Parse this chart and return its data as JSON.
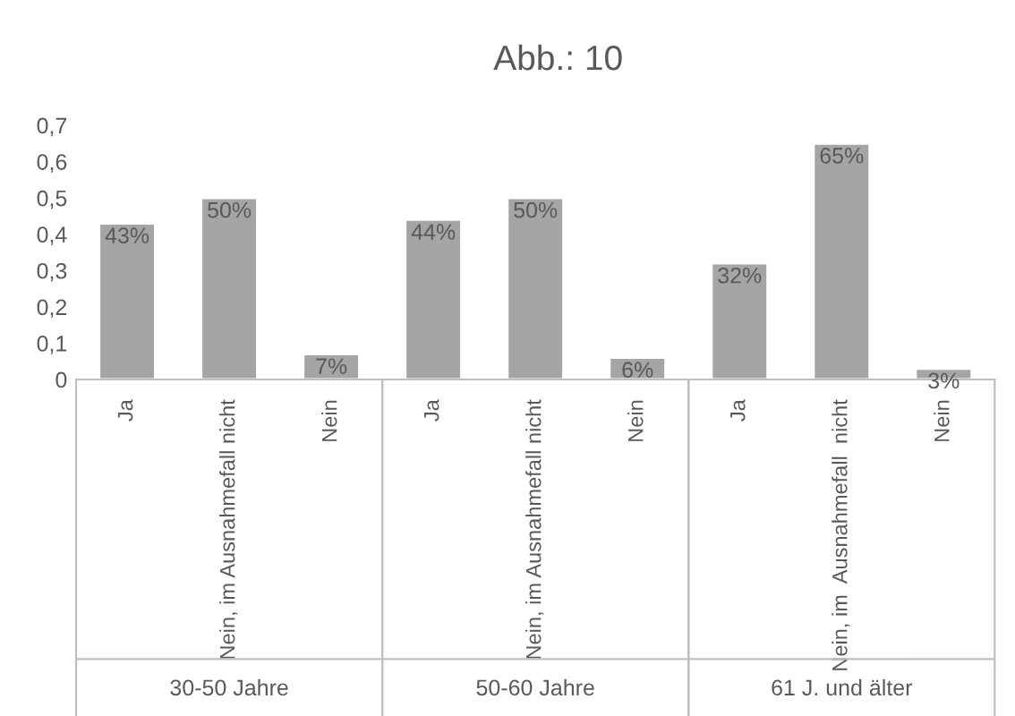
{
  "chart_data": {
    "type": "bar",
    "title": "Abb.: 10",
    "categories": [
      "Ja",
      "Nein, im Ausnahmefall nicht",
      "Nein",
      "Ja",
      "Nein, im Ausnahmefall nicht",
      "Nein",
      "Ja",
      "Nein, im  Ausnahmefall  nicht",
      "Nein"
    ],
    "values": [
      0.43,
      0.5,
      0.07,
      0.44,
      0.5,
      0.06,
      0.32,
      0.65,
      0.03
    ],
    "value_labels": [
      "43%",
      "50%",
      "7%",
      "44%",
      "50%",
      "6%",
      "32%",
      "65%",
      "3%"
    ],
    "color": "#a5a5a5",
    "ylim": [
      0,
      0.7
    ],
    "yticks": [
      {
        "value": 0,
        "label": "0"
      },
      {
        "value": 0.1,
        "label": "0,1"
      },
      {
        "value": 0.2,
        "label": "0,2"
      },
      {
        "value": 0.3,
        "label": "0,3"
      },
      {
        "value": 0.4,
        "label": "0,4"
      },
      {
        "value": 0.5,
        "label": "0,5"
      },
      {
        "value": 0.6,
        "label": "0,6"
      },
      {
        "value": 0.7,
        "label": "0,7"
      }
    ],
    "annotations": [
      "30-50 Jahre",
      "50-60 Jahre",
      "61 J. und älter"
    ],
    "grid": false
  }
}
